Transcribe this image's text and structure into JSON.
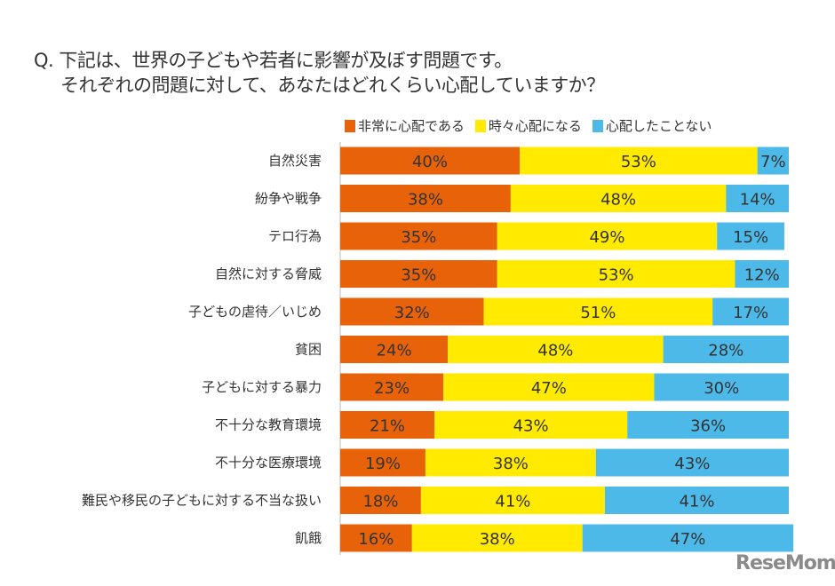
{
  "chart_data": {
    "type": "bar",
    "orientation": "horizontal",
    "stacked": true,
    "title": [
      "Q. 下記は、世界の子どもや若者に影響が及ぼす問題です。",
      "それぞれの問題に対して、あなたはどれくらい心配していますか？"
    ],
    "legend_position": "top-right",
    "categories": [
      "自然災害",
      "紛争や戦争",
      "テロ行為",
      "自然に対する脅威",
      "子どもの虐待／いじめ",
      "貧困",
      "子どもに対する暴力",
      "不十分な教育環境",
      "不十分な医療環境",
      "難民や移民の子どもに対する不当な扱い",
      "飢餓"
    ],
    "series": [
      {
        "name": "非常に心配である",
        "color": "#E8620A",
        "values": [
          40,
          38,
          35,
          35,
          32,
          24,
          23,
          21,
          19,
          18,
          16
        ]
      },
      {
        "name": "時々心配になる",
        "color": "#FFEA00",
        "values": [
          53,
          48,
          49,
          53,
          51,
          48,
          47,
          43,
          38,
          41,
          38
        ]
      },
      {
        "name": "心配したことない",
        "color": "#4DB9E9",
        "values": [
          7,
          14,
          15,
          12,
          17,
          28,
          30,
          36,
          43,
          41,
          47
        ]
      }
    ],
    "unit": "%",
    "grid": false
  },
  "logo": "ReseMom"
}
